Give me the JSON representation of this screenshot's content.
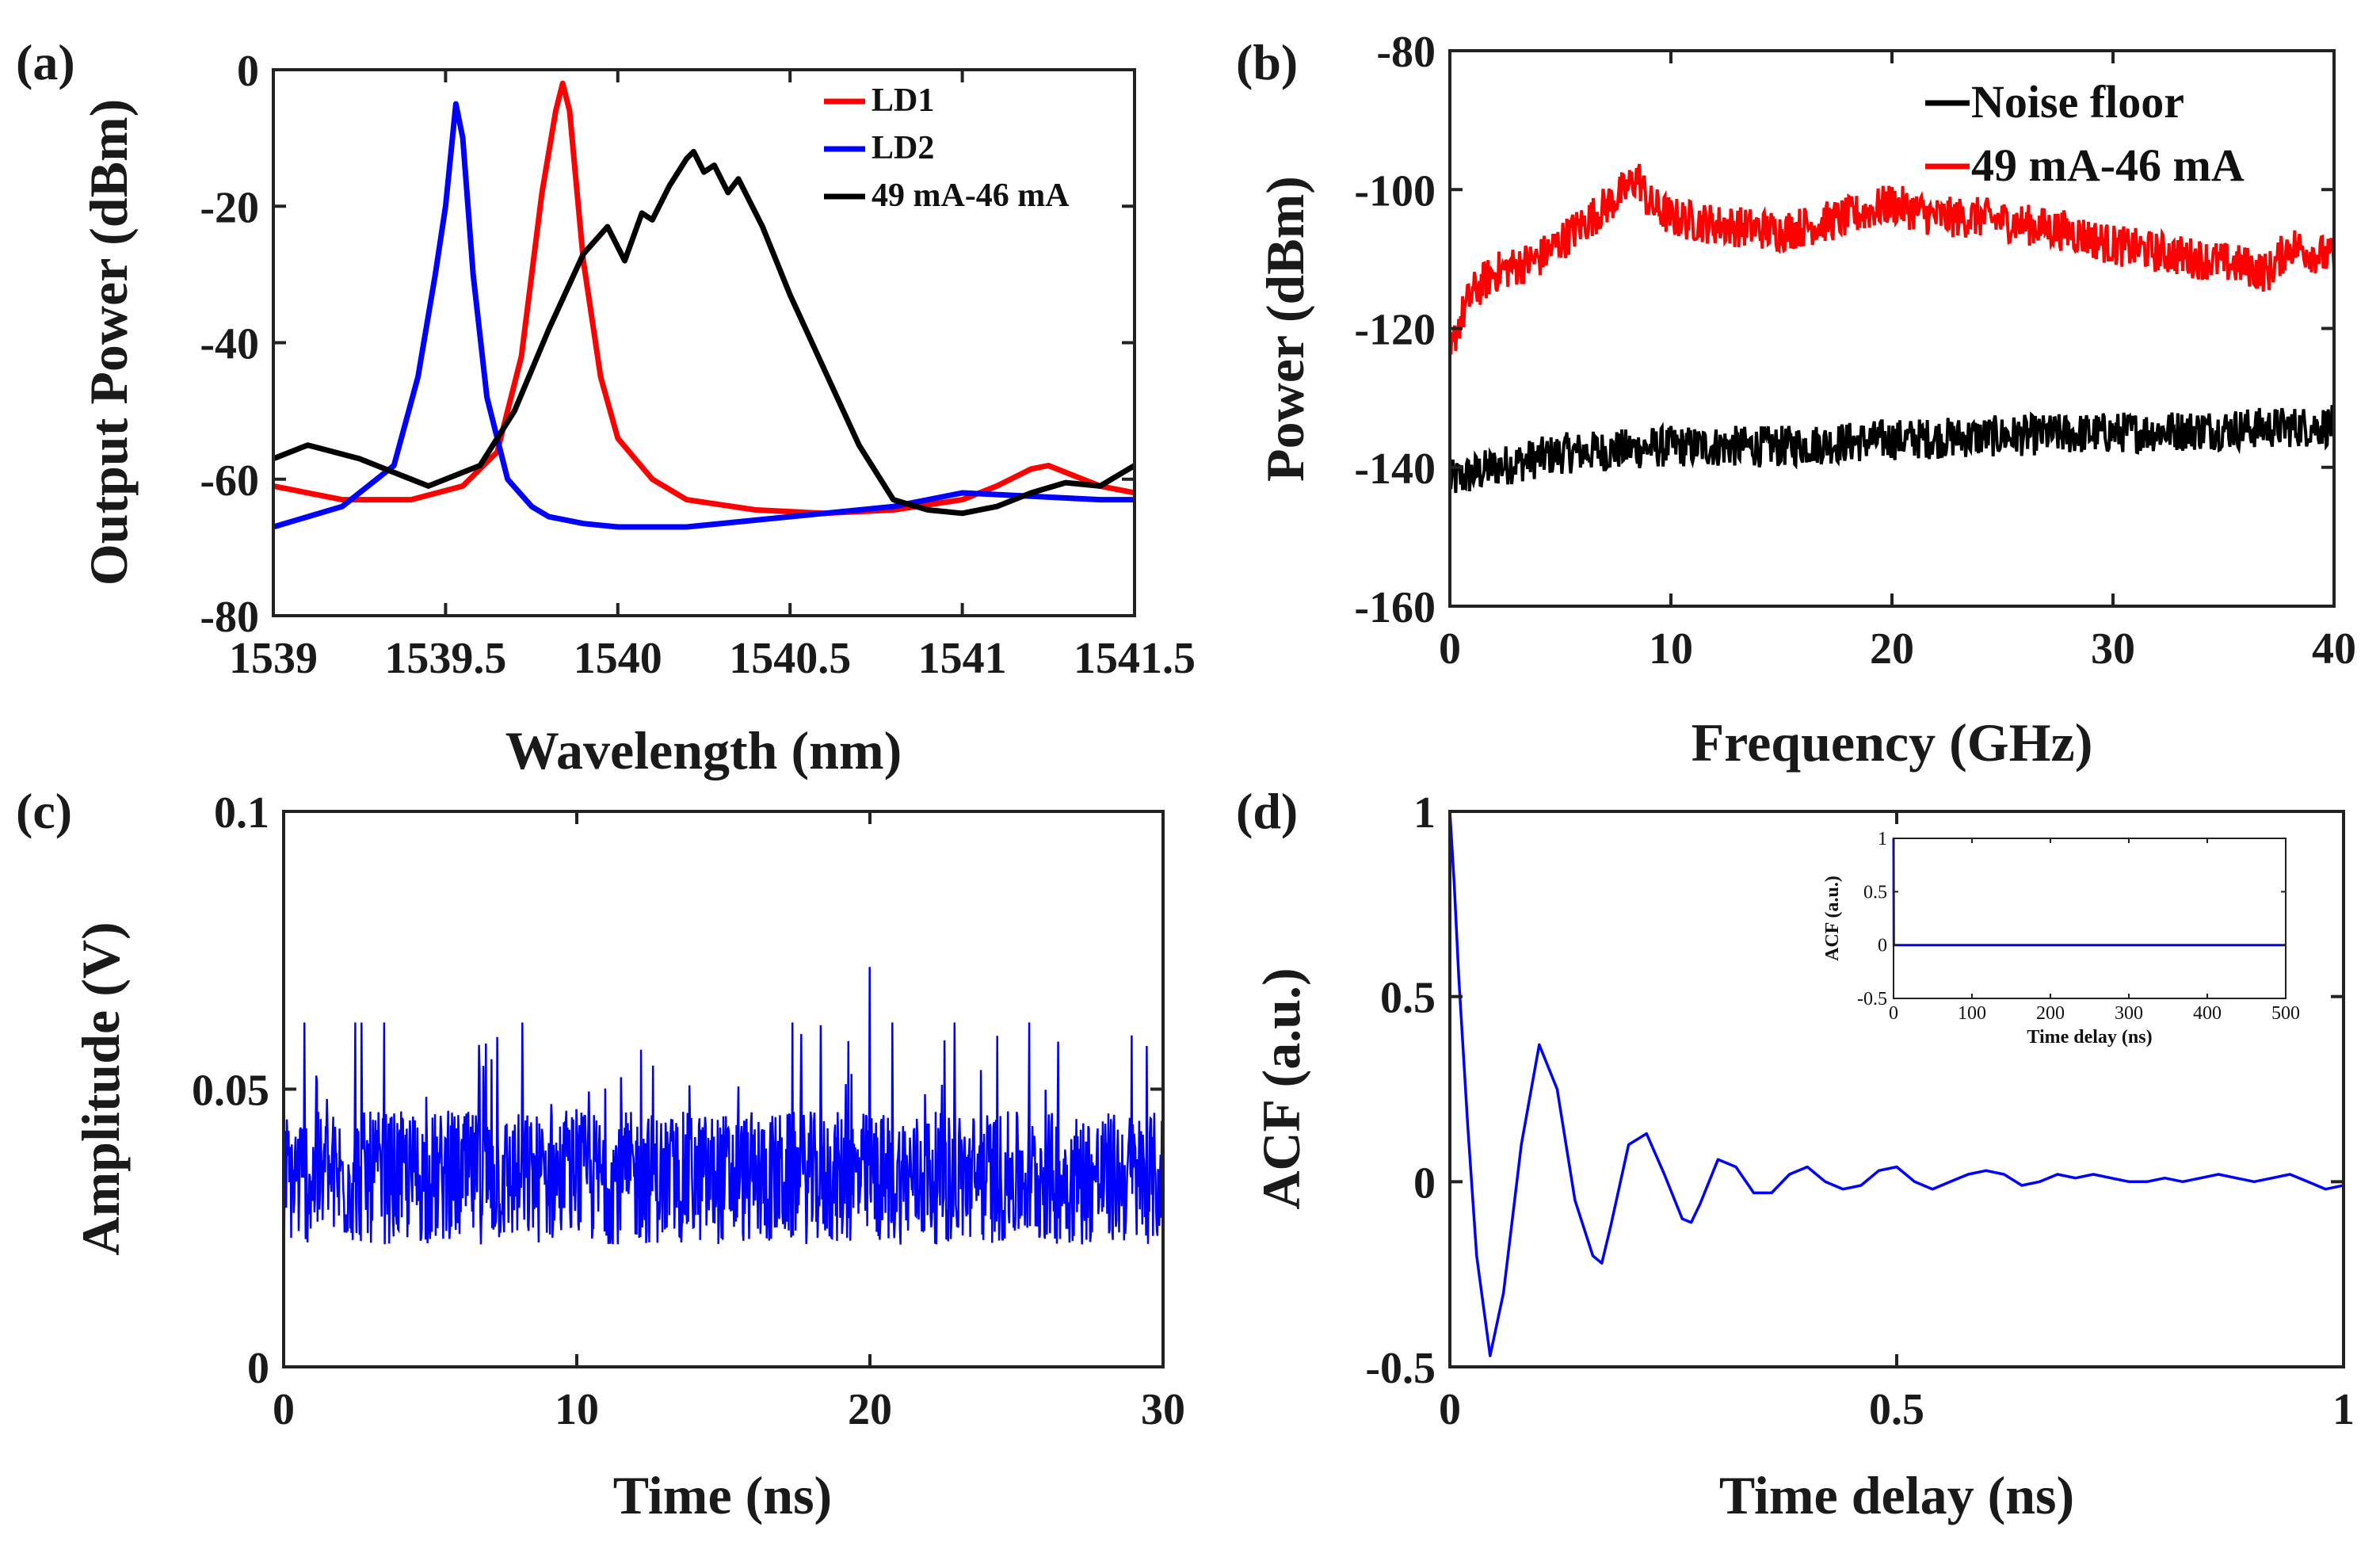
{
  "chart_data": [
    {
      "id": "a",
      "panel_label": "(a)",
      "type": "line",
      "xlabel": "Wavelength (nm)",
      "ylabel": "Output Power (dBm)",
      "xlim": [
        1539,
        1541.5
      ],
      "ylim": [
        -80,
        0
      ],
      "xticks": [
        1539,
        1539.5,
        1540,
        1540.5,
        1541,
        1541.5
      ],
      "xtick_labels": [
        "1539",
        "1539.5",
        "1540",
        "1540.5",
        "1541",
        "1541.5"
      ],
      "yticks": [
        0,
        -20,
        -40,
        -60,
        -80
      ],
      "ytick_labels": [
        "0",
        "-20",
        "-40",
        "-60",
        "-80"
      ],
      "legend_position": "top-right",
      "series": [
        {
          "name": "LD1",
          "color": "#ff0000",
          "x": [
            1539,
            1539.2,
            1539.4,
            1539.55,
            1539.65,
            1539.72,
            1539.78,
            1539.82,
            1539.84,
            1539.86,
            1539.9,
            1539.95,
            1540,
            1540.1,
            1540.2,
            1540.4,
            1540.6,
            1540.8,
            1541,
            1541.1,
            1541.2,
            1541.25,
            1541.3,
            1541.4,
            1541.5
          ],
          "y": [
            -61,
            -63,
            -63,
            -61,
            -56,
            -42,
            -18,
            -6,
            -2,
            -6,
            -28,
            -45,
            -54,
            -60,
            -63,
            -64.5,
            -65,
            -64.5,
            -63,
            -61,
            -58.5,
            -58,
            -59,
            -61,
            -62
          ]
        },
        {
          "name": "LD2",
          "color": "#0000ff",
          "x": [
            1539,
            1539.2,
            1539.35,
            1539.42,
            1539.47,
            1539.5,
            1539.53,
            1539.55,
            1539.58,
            1539.62,
            1539.68,
            1539.75,
            1539.8,
            1539.9,
            1540,
            1540.2,
            1540.4,
            1540.6,
            1540.8,
            1541,
            1541.2,
            1541.4,
            1541.5
          ],
          "y": [
            -67,
            -64,
            -58,
            -45,
            -30,
            -20,
            -5,
            -10,
            -30,
            -48,
            -60,
            -64,
            -65.5,
            -66.5,
            -67,
            -67,
            -66,
            -65,
            -64,
            -62,
            -62.5,
            -63,
            -63
          ]
        },
        {
          "name": "49 mA-46 mA",
          "color": "#000000",
          "x": [
            1539,
            1539.1,
            1539.25,
            1539.45,
            1539.6,
            1539.7,
            1539.8,
            1539.9,
            1539.97,
            1540.02,
            1540.07,
            1540.1,
            1540.15,
            1540.2,
            1540.22,
            1540.25,
            1540.28,
            1540.32,
            1540.35,
            1540.42,
            1540.5,
            1540.6,
            1540.7,
            1540.8,
            1540.9,
            1541,
            1541.1,
            1541.2,
            1541.3,
            1541.4,
            1541.5
          ],
          "y": [
            -57,
            -55,
            -57,
            -61,
            -58,
            -50,
            -38,
            -27,
            -23,
            -28,
            -21,
            -22,
            -17,
            -13,
            -12,
            -15,
            -14,
            -18,
            -16,
            -23,
            -33,
            -44,
            -55,
            -63,
            -64.5,
            -65,
            -64,
            -62,
            -60.5,
            -61,
            -58
          ]
        }
      ]
    },
    {
      "id": "b",
      "panel_label": "(b)",
      "type": "line",
      "xlabel": "Frequency (GHz)",
      "ylabel": "Power (dBm)",
      "xlim": [
        0,
        40
      ],
      "ylim": [
        -160,
        -80
      ],
      "xticks": [
        0,
        10,
        20,
        30,
        40
      ],
      "xtick_labels": [
        "0",
        "10",
        "20",
        "30",
        "40"
      ],
      "yticks": [
        -80,
        -100,
        -120,
        -140,
        -160
      ],
      "ytick_labels": [
        "-80",
        "-100",
        "-120",
        "-140",
        "-160"
      ],
      "legend_position": "top-right",
      "series": [
        {
          "name": "Noise floor",
          "color": "#000000",
          "x": [
            0,
            2,
            5,
            10,
            15,
            20,
            25,
            30,
            35,
            40
          ],
          "y": [
            -142,
            -140,
            -138,
            -137,
            -137,
            -136,
            -135.5,
            -135,
            -134.5,
            -134
          ]
        },
        {
          "name": "49 mA-46 mA",
          "color": "#ff0000",
          "x": [
            0,
            0.3,
            1,
            2,
            4,
            6,
            8,
            8.5,
            9,
            10,
            12,
            15,
            18,
            20,
            22,
            24,
            26,
            28,
            30,
            32,
            34,
            36,
            37,
            38,
            39,
            40
          ],
          "y": [
            -125,
            -120,
            -115,
            -112,
            -110,
            -105,
            -100,
            -98,
            -102,
            -104,
            -105,
            -106,
            -104,
            -102,
            -104,
            -104,
            -105,
            -106,
            -108,
            -109,
            -110,
            -111,
            -112,
            -108,
            -109,
            -110
          ]
        }
      ]
    },
    {
      "id": "c",
      "panel_label": "(c)",
      "type": "line",
      "xlabel": "Time (ns)",
      "ylabel": "Amplitude (V)",
      "xlim": [
        0,
        30
      ],
      "ylim": [
        0,
        0.1
      ],
      "xticks": [
        0,
        10,
        20,
        30
      ],
      "xtick_labels": [
        "0",
        "10",
        "20",
        "30"
      ],
      "yticks": [
        0,
        0.05,
        0.1
      ],
      "ytick_labels": [
        "0",
        "0.05",
        "0.1"
      ],
      "series": [
        {
          "color": "#0000ff",
          "mean": 0.034,
          "min": 0.021,
          "max": 0.072,
          "peak_x": 20,
          "peak_y": 0.072
        }
      ]
    },
    {
      "id": "d",
      "panel_label": "(d)",
      "type": "line",
      "xlabel": "Time delay (ns)",
      "ylabel": "ACF (a.u.)",
      "xlim": [
        0,
        1
      ],
      "ylim": [
        -0.5,
        1
      ],
      "xticks": [
        0,
        0.5,
        1
      ],
      "xtick_labels": [
        "0",
        "0.5",
        "1"
      ],
      "yticks": [
        1,
        0.5,
        0,
        -0.5
      ],
      "ytick_labels": [
        "1",
        "0.5",
        "0",
        "-0.5"
      ],
      "series": [
        {
          "color": "#0000ff",
          "x": [
            0,
            0.005,
            0.01,
            0.02,
            0.03,
            0.045,
            0.06,
            0.08,
            0.1,
            0.12,
            0.14,
            0.16,
            0.17,
            0.18,
            0.2,
            0.22,
            0.24,
            0.26,
            0.27,
            0.28,
            0.3,
            0.32,
            0.34,
            0.36,
            0.38,
            0.4,
            0.42,
            0.44,
            0.46,
            0.48,
            0.5,
            0.52,
            0.54,
            0.56,
            0.58,
            0.6,
            0.62,
            0.64,
            0.66,
            0.68,
            0.7,
            0.72,
            0.74,
            0.76,
            0.78,
            0.8,
            0.82,
            0.84,
            0.86,
            0.88,
            0.9,
            0.92,
            0.94,
            0.96,
            0.98,
            1
          ],
          "y": [
            1,
            0.8,
            0.55,
            0.15,
            -0.2,
            -0.47,
            -0.3,
            0.1,
            0.37,
            0.25,
            -0.05,
            -0.2,
            -0.22,
            -0.12,
            0.1,
            0.13,
            0.02,
            -0.1,
            -0.11,
            -0.06,
            0.06,
            0.04,
            -0.03,
            -0.03,
            0.02,
            0.04,
            0.0,
            -0.02,
            -0.01,
            0.03,
            0.04,
            0.0,
            -0.02,
            0.0,
            0.02,
            0.03,
            0.02,
            -0.01,
            0.0,
            0.02,
            0.01,
            0.02,
            0.01,
            0.0,
            0.0,
            0.01,
            0.0,
            0.01,
            0.02,
            0.01,
            0.0,
            0.01,
            0.02,
            0.0,
            -0.02,
            -0.01
          ]
        }
      ],
      "inset": {
        "xlabel": "Time delay (ns)",
        "ylabel": "ACF (a.u.)",
        "xlim": [
          0,
          500
        ],
        "ylim": [
          -0.5,
          1
        ],
        "xticks": [
          0,
          100,
          200,
          300,
          400,
          500
        ],
        "xtick_labels": [
          "0",
          "100",
          "200",
          "300",
          "400",
          "500"
        ],
        "yticks": [
          1,
          0.5,
          0,
          -0.5
        ],
        "ytick_labels": [
          "1",
          "0.5",
          "0",
          "-0.5"
        ],
        "series": [
          {
            "color": "#0000ff",
            "x": [
              0,
              0.3,
              1,
              500
            ],
            "y": [
              1,
              0.0,
              0.0,
              0.0
            ]
          }
        ]
      }
    }
  ]
}
